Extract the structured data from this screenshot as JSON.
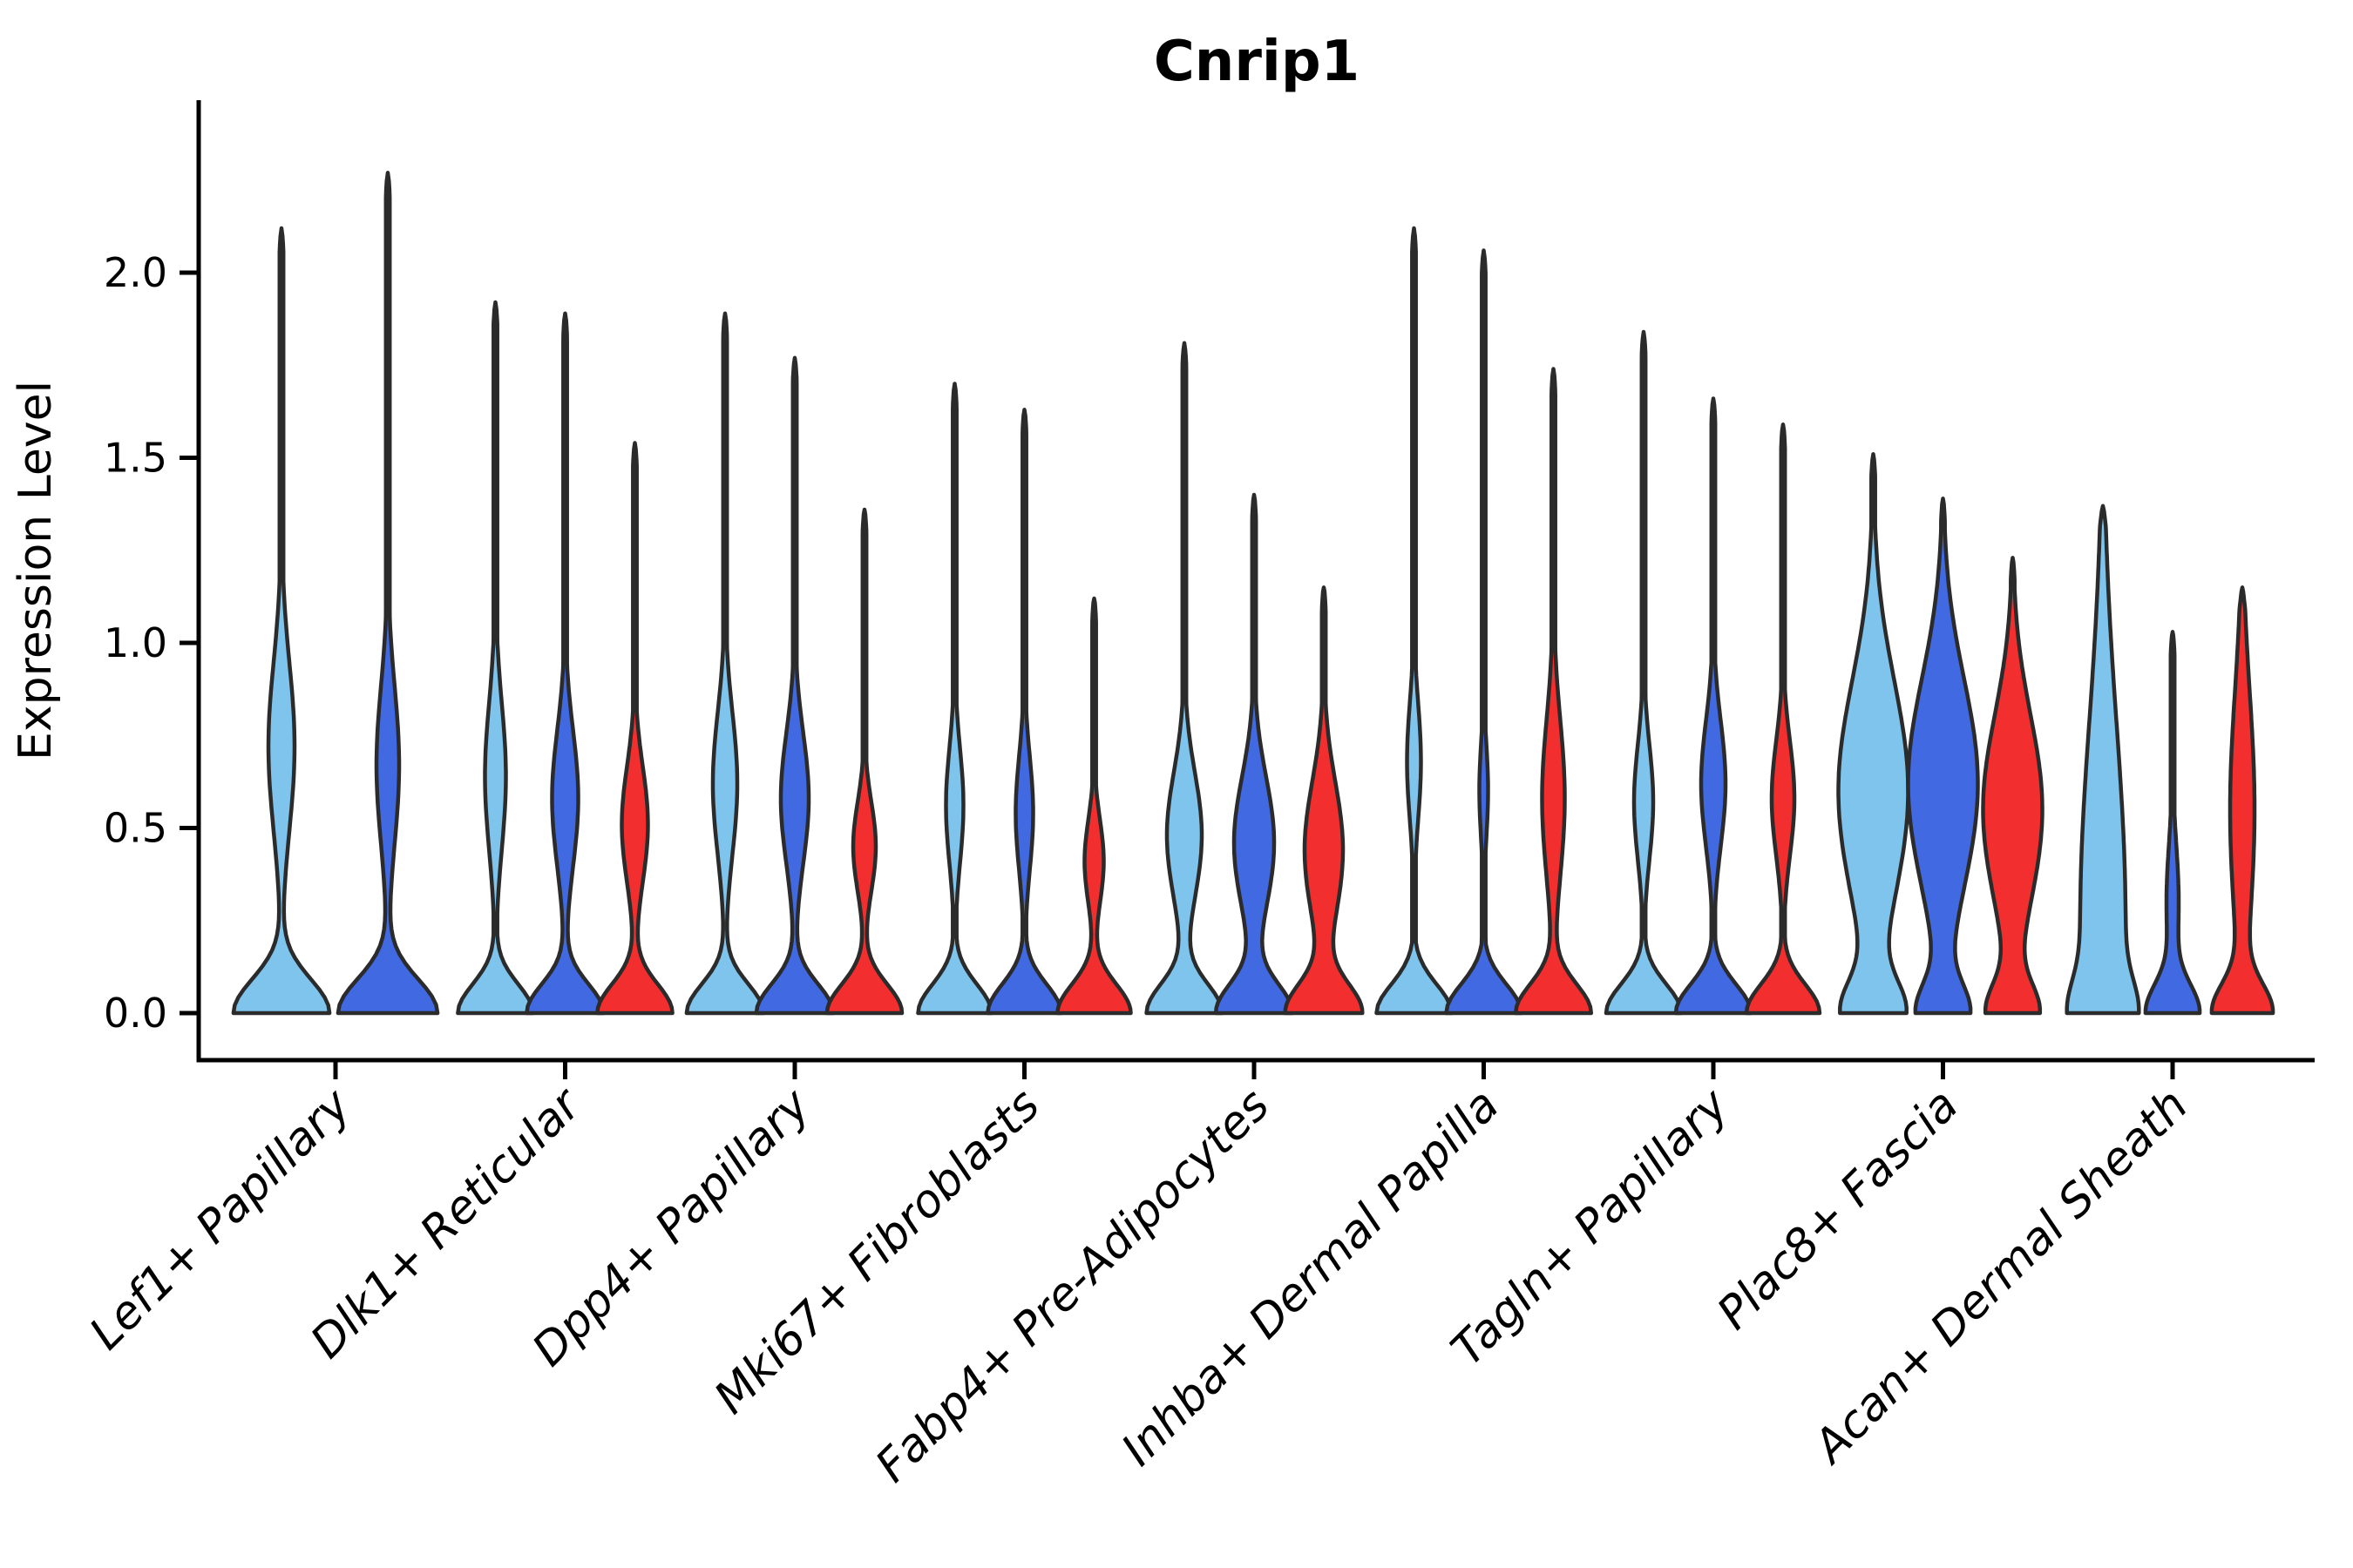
{
  "title": "Cnrip1",
  "axes": {
    "ylabel": "Expression Level",
    "xlabel": "",
    "ytick_labels": [
      "0.0",
      "0.5",
      "1.0",
      "1.5",
      "2.0"
    ],
    "ytick_values": [
      0.0,
      0.5,
      1.0,
      1.5,
      2.0
    ]
  },
  "chart_data": {
    "type": "violin",
    "title": "Cnrip1",
    "ylabel": "Expression Level",
    "ylim": [
      0,
      2.46
    ],
    "yticks": [
      0.0,
      0.5,
      1.0,
      1.5,
      2.0
    ],
    "grid": false,
    "legend": "none",
    "categories": [
      "Lef1+ Papillary",
      "Dlk1+ Reticular",
      "Dpp4+ Papillary",
      "Mki67+ Fibroblasts",
      "Fabp4+ Pre-Adipocytes",
      "Inhba+ Dermal Papilla",
      "Tagln+ Papillary",
      "Plac8+ Fascia",
      "Acan+ Dermal Sheath"
    ],
    "series": [
      {
        "name": "skyblue",
        "color": "#7EC4EC"
      },
      {
        "name": "royalblue",
        "color": "#4169E1"
      },
      {
        "name": "red",
        "color": "#F22E2E"
      }
    ],
    "stroke_color": "#2B2B2B",
    "stroke_width": 4.5,
    "note": "Each violin: max = top of density spike (expression units); profile encodes density half-widths (wb=base bulge at 0, wm=mid bulge) with centers m and spreads s/sb in expression units; dx = horizontal offset from category tick (px).",
    "violins": [
      {
        "category_index": 0,
        "series": "skyblue",
        "dx": -62,
        "max": 2.12,
        "profile": {
          "wb": 55,
          "sb": 0.13,
          "wm": 15,
          "m": 0.72,
          "s": 0.32
        }
      },
      {
        "category_index": 0,
        "series": "royalblue",
        "dx": 60,
        "max": 2.27,
        "profile": {
          "wb": 57,
          "sb": 0.13,
          "wm": 13,
          "m": 0.67,
          "s": 0.3
        }
      },
      {
        "category_index": 1,
        "series": "skyblue",
        "dx": -80,
        "max": 1.92,
        "profile": {
          "wb": 43,
          "sb": 0.11,
          "wm": 12,
          "m": 0.64,
          "s": 0.28
        }
      },
      {
        "category_index": 1,
        "series": "royalblue",
        "dx": 0,
        "max": 1.89,
        "profile": {
          "wb": 44,
          "sb": 0.11,
          "wm": 15,
          "m": 0.58,
          "s": 0.26
        }
      },
      {
        "category_index": 1,
        "series": "red",
        "dx": 80,
        "max": 1.54,
        "profile": {
          "wb": 43,
          "sb": 0.11,
          "wm": 15,
          "m": 0.51,
          "s": 0.22
        }
      },
      {
        "category_index": 2,
        "series": "skyblue",
        "dx": -80,
        "max": 1.89,
        "profile": {
          "wb": 44,
          "sb": 0.11,
          "wm": 14,
          "m": 0.62,
          "s": 0.27
        }
      },
      {
        "category_index": 2,
        "series": "royalblue",
        "dx": 0,
        "max": 1.77,
        "profile": {
          "wb": 44,
          "sb": 0.11,
          "wm": 16,
          "m": 0.58,
          "s": 0.25
        }
      },
      {
        "category_index": 2,
        "series": "red",
        "dx": 80,
        "max": 1.36,
        "profile": {
          "wb": 43,
          "sb": 0.11,
          "wm": 13,
          "m": 0.45,
          "s": 0.17
        }
      },
      {
        "category_index": 3,
        "series": "skyblue",
        "dx": -80,
        "max": 1.7,
        "profile": {
          "wb": 42,
          "sb": 0.11,
          "wm": 10,
          "m": 0.56,
          "s": 0.22
        }
      },
      {
        "category_index": 3,
        "series": "royalblue",
        "dx": 0,
        "max": 1.63,
        "profile": {
          "wb": 42,
          "sb": 0.11,
          "wm": 10,
          "m": 0.54,
          "s": 0.22
        }
      },
      {
        "category_index": 3,
        "series": "red",
        "dx": 80,
        "max": 1.12,
        "profile": {
          "wb": 42,
          "sb": 0.11,
          "wm": 11,
          "m": 0.41,
          "s": 0.16
        }
      },
      {
        "category_index": 4,
        "series": "skyblue",
        "dx": -80,
        "max": 1.81,
        "profile": {
          "wb": 43,
          "sb": 0.11,
          "wm": 20,
          "m": 0.48,
          "s": 0.24
        }
      },
      {
        "category_index": 4,
        "series": "royalblue",
        "dx": 0,
        "max": 1.4,
        "profile": {
          "wb": 43,
          "sb": 0.11,
          "wm": 23,
          "m": 0.46,
          "s": 0.25
        }
      },
      {
        "category_index": 4,
        "series": "red",
        "dx": 80,
        "max": 1.15,
        "profile": {
          "wb": 43,
          "sb": 0.11,
          "wm": 22,
          "m": 0.44,
          "s": 0.26
        }
      },
      {
        "category_index": 5,
        "series": "skyblue",
        "dx": -80,
        "max": 2.12,
        "profile": {
          "wb": 43,
          "sb": 0.11,
          "wm": 8,
          "m": 0.68,
          "s": 0.22
        }
      },
      {
        "category_index": 5,
        "series": "royalblue",
        "dx": 0,
        "max": 2.06,
        "profile": {
          "wb": 43,
          "sb": 0.11,
          "wm": 5,
          "m": 0.6,
          "s": 0.18
        }
      },
      {
        "category_index": 5,
        "series": "red",
        "dx": 80,
        "max": 1.74,
        "profile": {
          "wb": 43,
          "sb": 0.11,
          "wm": 13,
          "m": 0.58,
          "s": 0.3
        }
      },
      {
        "category_index": 6,
        "series": "skyblue",
        "dx": -80,
        "max": 1.84,
        "profile": {
          "wb": 43,
          "sb": 0.11,
          "wm": 11,
          "m": 0.57,
          "s": 0.22
        }
      },
      {
        "category_index": 6,
        "series": "royalblue",
        "dx": 0,
        "max": 1.66,
        "profile": {
          "wb": 43,
          "sb": 0.11,
          "wm": 14,
          "m": 0.62,
          "s": 0.24
        }
      },
      {
        "category_index": 6,
        "series": "red",
        "dx": 80,
        "max": 1.59,
        "profile": {
          "wb": 42,
          "sb": 0.11,
          "wm": 13,
          "m": 0.58,
          "s": 0.22
        }
      },
      {
        "category_index": 7,
        "series": "skyblue",
        "dx": -80,
        "max": 1.51,
        "profile": {
          "wb": 33,
          "sb": 0.12,
          "wm": 40,
          "m": 0.6,
          "s": 0.42
        }
      },
      {
        "category_index": 7,
        "series": "royalblue",
        "dx": 0,
        "max": 1.39,
        "profile": {
          "wb": 28,
          "sb": 0.11,
          "wm": 40,
          "m": 0.62,
          "s": 0.4
        }
      },
      {
        "category_index": 7,
        "series": "red",
        "dx": 80,
        "max": 1.23,
        "profile": {
          "wb": 28,
          "sb": 0.11,
          "wm": 34,
          "m": 0.55,
          "s": 0.36
        }
      },
      {
        "category_index": 8,
        "series": "skyblue",
        "dx": -80,
        "max": 1.37,
        "profile": {
          "wb": 18,
          "sb": 0.12,
          "wm": 26,
          "m": 0.25,
          "s": 0.75
        }
      },
      {
        "category_index": 8,
        "series": "royalblue",
        "dx": 0,
        "max": 1.03,
        "profile": {
          "wb": 30,
          "sb": 0.11,
          "wm": 7,
          "m": 0.3,
          "s": 0.22
        }
      },
      {
        "category_index": 8,
        "series": "red",
        "dx": 80,
        "max": 1.15,
        "profile": {
          "wb": 32,
          "sb": 0.11,
          "wm": 14,
          "m": 0.55,
          "s": 0.45
        }
      }
    ]
  }
}
